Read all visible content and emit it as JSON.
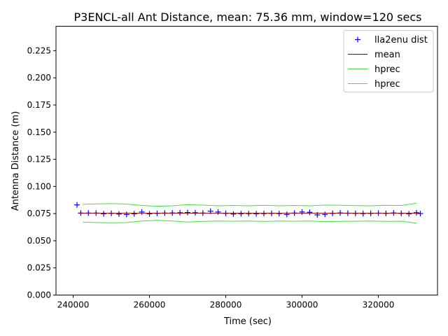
{
  "chart_data": {
    "type": "scatter",
    "title": "P3ENCL-all Ant Distance, mean: 75.36 mm, window=120 secs",
    "xlabel": "Time (sec)",
    "ylabel": "Antenna Distance (m)",
    "xlim": [
      235500,
      335500
    ],
    "ylim": [
      0.0,
      0.2475
    ],
    "xticks": [
      {
        "value": 240000,
        "label": "240000"
      },
      {
        "value": 260000,
        "label": "260000"
      },
      {
        "value": 280000,
        "label": "280000"
      },
      {
        "value": 300000,
        "label": "300000"
      },
      {
        "value": 320000,
        "label": "320000"
      }
    ],
    "yticks": [
      {
        "value": 0.0,
        "label": "0.000"
      },
      {
        "value": 0.025,
        "label": "0.025"
      },
      {
        "value": 0.05,
        "label": "0.050"
      },
      {
        "value": 0.075,
        "label": "0.075"
      },
      {
        "value": 0.1,
        "label": "0.100"
      },
      {
        "value": 0.125,
        "label": "0.125"
      },
      {
        "value": 0.15,
        "label": "0.150"
      },
      {
        "value": 0.175,
        "label": "0.175"
      },
      {
        "value": 0.2,
        "label": "0.200"
      },
      {
        "value": 0.225,
        "label": "0.225"
      }
    ],
    "grid": false,
    "legend_position": "top-right",
    "series": [
      {
        "name": "lla2enu dist",
        "kind": "marker",
        "marker": "+",
        "color": "#0000ff",
        "x": [
          241000,
          242000,
          244000,
          246000,
          248000,
          250000,
          252000,
          254000,
          256000,
          258000,
          260000,
          262000,
          264000,
          266000,
          268000,
          270000,
          272000,
          274000,
          276000,
          278000,
          280000,
          282000,
          284000,
          286000,
          288000,
          290000,
          292000,
          294000,
          296000,
          298000,
          300000,
          302000,
          304000,
          306000,
          308000,
          310000,
          312000,
          314000,
          316000,
          318000,
          320000,
          322000,
          324000,
          326000,
          328000,
          330000,
          331000
        ],
        "y": [
          0.083,
          0.0755,
          0.0755,
          0.0755,
          0.0748,
          0.0752,
          0.0746,
          0.0742,
          0.0748,
          0.0765,
          0.0748,
          0.0752,
          0.0755,
          0.0756,
          0.0758,
          0.076,
          0.0758,
          0.0755,
          0.0772,
          0.0765,
          0.0752,
          0.0746,
          0.0749,
          0.075,
          0.0748,
          0.075,
          0.0752,
          0.075,
          0.0742,
          0.0755,
          0.0765,
          0.0762,
          0.0738,
          0.0742,
          0.0752,
          0.0756,
          0.0754,
          0.0752,
          0.075,
          0.0752,
          0.0754,
          0.0752,
          0.0756,
          0.0752,
          0.0748,
          0.0758,
          0.075
        ]
      },
      {
        "name": "mean",
        "kind": "line",
        "color": "#8b0000",
        "x": [
          241500,
          331000
        ],
        "y": [
          0.07536,
          0.07536
        ]
      },
      {
        "name": "hprec",
        "kind": "line",
        "color": "#44dd44",
        "x": [
          242500,
          246000,
          250000,
          254000,
          258000,
          262000,
          266000,
          270000,
          274000,
          278000,
          282000,
          286000,
          290000,
          294000,
          298000,
          302000,
          306000,
          310000,
          314000,
          318000,
          322000,
          326000,
          330000
        ],
        "y": [
          0.0835,
          0.084,
          0.0842,
          0.0838,
          0.0825,
          0.0818,
          0.0822,
          0.0832,
          0.0828,
          0.0822,
          0.0825,
          0.0822,
          0.0826,
          0.0822,
          0.0825,
          0.0822,
          0.0828,
          0.0826,
          0.0824,
          0.0822,
          0.0826,
          0.0825,
          0.0845
        ]
      },
      {
        "name": "hprec",
        "kind": "line",
        "color": "#44dd44",
        "x": [
          242500,
          246000,
          250000,
          254000,
          258000,
          262000,
          266000,
          270000,
          274000,
          278000,
          282000,
          286000,
          290000,
          294000,
          298000,
          302000,
          306000,
          310000,
          314000,
          318000,
          322000,
          326000,
          330000
        ],
        "y": [
          0.0672,
          0.0668,
          0.0665,
          0.0668,
          0.0682,
          0.0688,
          0.0682,
          0.0672,
          0.0678,
          0.0682,
          0.068,
          0.0682,
          0.0678,
          0.0682,
          0.068,
          0.0682,
          0.0676,
          0.0678,
          0.068,
          0.0682,
          0.0678,
          0.068,
          0.0662
        ]
      }
    ]
  }
}
